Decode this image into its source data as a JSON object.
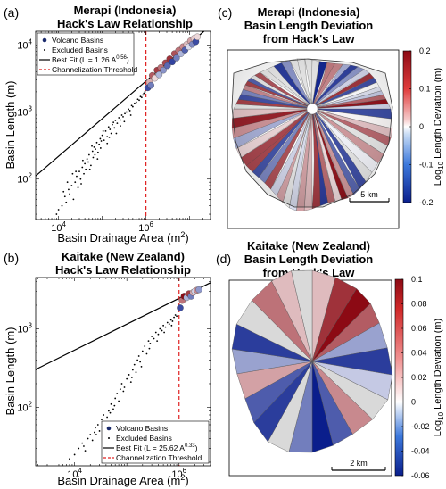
{
  "panels": [
    {
      "tag": "(a)",
      "title_line1": "Merapi (Indonesia)",
      "title_line2": "Hack's Law Relationship"
    },
    {
      "tag": "(b)",
      "title_line1": "Kaitake (New Zealand)",
      "title_line2": "Hack's Law Relationship"
    },
    {
      "tag": "(c)",
      "title_lines": [
        "Merapi (Indonesia)",
        "Basin Length Deviation",
        "from Hack's Law"
      ],
      "scalebar": "5 km"
    },
    {
      "tag": "(d)",
      "title_lines": [
        "Kaitake (New Zealand)",
        "Basin Length Deviation",
        "from Hack's Law"
      ],
      "scalebar": "2 km"
    }
  ],
  "colors": {
    "deviation_low": "#0a1e8c",
    "deviation_mid": "#ffffff",
    "deviation_high": "#8c0a14",
    "threshold": "#e02020",
    "fit": "#000000"
  },
  "chart_data": [
    {
      "type": "scatter",
      "id": "merapi-hack",
      "xlabel": "Basin Drainage Area (m",
      "xlabel_sup": "2",
      "xlabel_close": ")",
      "ylabel": "Basin Length (m)",
      "xscale": "log",
      "yscale": "log",
      "xlim": [
        3000,
        30000000
      ],
      "ylim": [
        25,
        16000
      ],
      "xticks": [
        {
          "v": 10000,
          "base": "10",
          "exp": "4"
        },
        {
          "v": 1000000,
          "base": "10",
          "exp": "6"
        }
      ],
      "yticks": [
        {
          "v": 100,
          "base": "10",
          "exp": "2"
        },
        {
          "v": 1000,
          "base": "10",
          "exp": "3"
        },
        {
          "v": 10000,
          "base": "10",
          "exp": "4"
        }
      ],
      "legend": {
        "position": "top-left",
        "items": [
          {
            "kind": "dot-large",
            "label": "Volcano Basins"
          },
          {
            "kind": "dot-small",
            "label": "Excluded Basins"
          },
          {
            "kind": "line",
            "label": "Best Fit (L = 1.26 A",
            "sup": "0.56",
            "close": ")"
          },
          {
            "kind": "dashed",
            "label": "Channelization Threshold"
          }
        ]
      },
      "fit": {
        "a": 1.26,
        "b": 0.56
      },
      "threshold_x": 1000000,
      "excluded": [
        [
          9000,
          30
        ],
        [
          10000,
          35
        ],
        [
          12000,
          40
        ],
        [
          14000,
          55
        ],
        [
          15000,
          45
        ],
        [
          17000,
          70
        ],
        [
          18000,
          60
        ],
        [
          20000,
          80
        ],
        [
          22000,
          50
        ],
        [
          24000,
          90
        ],
        [
          26000,
          110
        ],
        [
          28000,
          75
        ],
        [
          30000,
          130
        ],
        [
          32000,
          100
        ],
        [
          35000,
          150
        ],
        [
          38000,
          120
        ],
        [
          40000,
          170
        ],
        [
          42000,
          140
        ],
        [
          45000,
          200
        ],
        [
          48000,
          180
        ],
        [
          50000,
          230
        ],
        [
          55000,
          160
        ],
        [
          60000,
          260
        ],
        [
          62000,
          210
        ],
        [
          65000,
          300
        ],
        [
          70000,
          280
        ],
        [
          75000,
          350
        ],
        [
          80000,
          250
        ],
        [
          85000,
          330
        ],
        [
          90000,
          400
        ],
        [
          95000,
          370
        ],
        [
          100000,
          450
        ],
        [
          110000,
          380
        ],
        [
          120000,
          520
        ],
        [
          130000,
          430
        ],
        [
          140000,
          600
        ],
        [
          150000,
          550
        ],
        [
          160000,
          480
        ],
        [
          170000,
          650
        ],
        [
          180000,
          700
        ],
        [
          190000,
          580
        ],
        [
          200000,
          750
        ],
        [
          220000,
          680
        ],
        [
          240000,
          820
        ],
        [
          260000,
          760
        ],
        [
          280000,
          900
        ],
        [
          300000,
          850
        ],
        [
          330000,
          950
        ],
        [
          360000,
          1000
        ],
        [
          400000,
          1100
        ],
        [
          430000,
          1050
        ],
        [
          470000,
          1250
        ],
        [
          500000,
          1200
        ],
        [
          550000,
          1350
        ],
        [
          600000,
          1400
        ],
        [
          650000,
          1550
        ],
        [
          700000,
          1500
        ],
        [
          750000,
          1700
        ],
        [
          800000,
          1650
        ],
        [
          850000,
          1800
        ],
        [
          900000,
          1900
        ],
        [
          950000,
          2000
        ],
        [
          16000,
          90
        ],
        [
          25000,
          130
        ],
        [
          36000,
          190
        ],
        [
          52000,
          140
        ],
        [
          68000,
          230
        ],
        [
          92000,
          290
        ],
        [
          130000,
          340
        ],
        [
          210000,
          480
        ],
        [
          320000,
          720
        ],
        [
          450000,
          900
        ],
        [
          13000,
          65
        ],
        [
          21000,
          120
        ],
        [
          33000,
          85
        ],
        [
          58000,
          310
        ],
        [
          78000,
          200
        ],
        [
          105000,
          520
        ],
        [
          145000,
          420
        ],
        [
          260000,
          620
        ]
      ],
      "basins": [
        [
          1100000,
          2300,
          -0.15
        ],
        [
          1200000,
          2800,
          0.05
        ],
        [
          1300000,
          2500,
          -0.1
        ],
        [
          1400000,
          3500,
          0.12
        ],
        [
          1600000,
          3200,
          0.02
        ],
        [
          1800000,
          4200,
          0.15
        ],
        [
          2000000,
          3600,
          -0.05
        ],
        [
          2200000,
          4600,
          0.1
        ],
        [
          2500000,
          4200,
          -0.08
        ],
        [
          2800000,
          5400,
          0.14
        ],
        [
          3100000,
          4900,
          -0.12
        ],
        [
          3500000,
          6200,
          0.16
        ],
        [
          4000000,
          5600,
          -0.16
        ],
        [
          4500000,
          7400,
          0.13
        ],
        [
          5000000,
          6400,
          -0.1
        ],
        [
          5600000,
          8300,
          0.1
        ],
        [
          6300000,
          7400,
          -0.05
        ],
        [
          7000000,
          9400,
          0.08
        ],
        [
          7800000,
          8400,
          -0.13
        ],
        [
          8600000,
          10200,
          0.04
        ],
        [
          9500000,
          9400,
          -0.02
        ],
        [
          10500000,
          11500,
          0.06
        ],
        [
          11500000,
          10200,
          -0.09
        ],
        [
          12600000,
          12500,
          0.03
        ],
        [
          13800000,
          11200,
          -0.15
        ],
        [
          15000000,
          13200,
          0.02
        ]
      ]
    },
    {
      "type": "scatter",
      "id": "kaitake-hack",
      "xlabel": "Basin Drainage Area (m",
      "xlabel_sup": "2",
      "xlabel_close": ")",
      "ylabel": "Basin Length (m)",
      "xscale": "log",
      "yscale": "log",
      "xlim": [
        1800,
        4000000
      ],
      "ylim": [
        18,
        4500
      ],
      "xticks": [
        {
          "v": 10000,
          "base": "10",
          "exp": "4"
        },
        {
          "v": 1000000,
          "base": "10",
          "exp": "6"
        }
      ],
      "yticks": [
        {
          "v": 100,
          "base": "10",
          "exp": "2"
        },
        {
          "v": 1000,
          "base": "10",
          "exp": "3"
        }
      ],
      "legend": {
        "position": "bottom-right",
        "items": [
          {
            "kind": "dot-large",
            "label": "Volcano Basins"
          },
          {
            "kind": "dot-small",
            "label": "Excluded Basins"
          },
          {
            "kind": "line",
            "label": "Best Fit (L = 25.62 A",
            "sup": "0.33",
            "close": ")"
          },
          {
            "kind": "dashed",
            "label": "Channelization Threshold"
          }
        ]
      },
      "fit": {
        "a": 25.62,
        "b": 0.33
      },
      "threshold_x": 1000000,
      "excluded": [
        [
          8000,
          22
        ],
        [
          10000,
          25
        ],
        [
          12000,
          30
        ],
        [
          14000,
          35
        ],
        [
          16000,
          28
        ],
        [
          18000,
          40
        ],
        [
          20000,
          45
        ],
        [
          22000,
          38
        ],
        [
          25000,
          55
        ],
        [
          28000,
          60
        ],
        [
          30000,
          50
        ],
        [
          33000,
          70
        ],
        [
          36000,
          80
        ],
        [
          40000,
          65
        ],
        [
          45000,
          90
        ],
        [
          50000,
          110
        ],
        [
          55000,
          95
        ],
        [
          60000,
          130
        ],
        [
          65000,
          150
        ],
        [
          70000,
          120
        ],
        [
          75000,
          170
        ],
        [
          80000,
          200
        ],
        [
          90000,
          180
        ],
        [
          100000,
          230
        ],
        [
          110000,
          260
        ],
        [
          120000,
          210
        ],
        [
          130000,
          300
        ],
        [
          140000,
          350
        ],
        [
          150000,
          280
        ],
        [
          160000,
          400
        ],
        [
          170000,
          450
        ],
        [
          180000,
          380
        ],
        [
          200000,
          520
        ],
        [
          220000,
          600
        ],
        [
          240000,
          480
        ],
        [
          260000,
          700
        ],
        [
          280000,
          650
        ],
        [
          300000,
          800
        ],
        [
          330000,
          750
        ],
        [
          360000,
          900
        ],
        [
          400000,
          850
        ],
        [
          430000,
          1000
        ],
        [
          470000,
          950
        ],
        [
          500000,
          1100
        ],
        [
          550000,
          1050
        ],
        [
          600000,
          1200
        ],
        [
          650000,
          1150
        ],
        [
          700000,
          1300
        ],
        [
          750000,
          1250
        ],
        [
          800000,
          1400
        ],
        [
          850000,
          1500
        ],
        [
          900000,
          1450
        ],
        [
          26000,
          45
        ],
        [
          42000,
          75
        ],
        [
          58000,
          105
        ],
        [
          86000,
          160
        ],
        [
          125000,
          240
        ],
        [
          190000,
          330
        ],
        [
          270000,
          560
        ],
        [
          380000,
          700
        ],
        [
          520000,
          900
        ],
        [
          720000,
          1100
        ],
        [
          15000,
          32
        ],
        [
          24000,
          48
        ],
        [
          34000,
          58
        ],
        [
          48000,
          85
        ]
      ],
      "basins": [
        [
          1050000,
          1850,
          -0.06
        ],
        [
          1150000,
          2300,
          0.04
        ],
        [
          1250000,
          2600,
          0.09
        ],
        [
          1400000,
          2500,
          -0.02
        ],
        [
          1550000,
          2800,
          0.06
        ],
        [
          1700000,
          2600,
          -0.04
        ],
        [
          1850000,
          2900,
          0.02
        ],
        [
          2000000,
          3000,
          -0.01
        ],
        [
          2200000,
          3100,
          0.03
        ],
        [
          2400000,
          3150,
          -0.03
        ]
      ]
    }
  ],
  "colorbars": [
    {
      "id": "merapi-cbar",
      "label_pre": "Log",
      "label_sub": "10",
      "label_post": " Length Deviation (m)",
      "min": -0.2,
      "max": 0.2,
      "ticks": [
        "-0.2",
        "-0.1",
        "0",
        "0.1",
        "0.2"
      ]
    },
    {
      "id": "kaitake-cbar",
      "label_pre": "Log",
      "label_sub": "10",
      "label_post": " Length Deviation (m)",
      "min": -0.06,
      "max": 0.1,
      "ticks": [
        "-0.06",
        "-0.04",
        "-0.02",
        "0",
        "0.02",
        "0.04",
        "0.06",
        "0.08",
        "0.1"
      ]
    }
  ]
}
